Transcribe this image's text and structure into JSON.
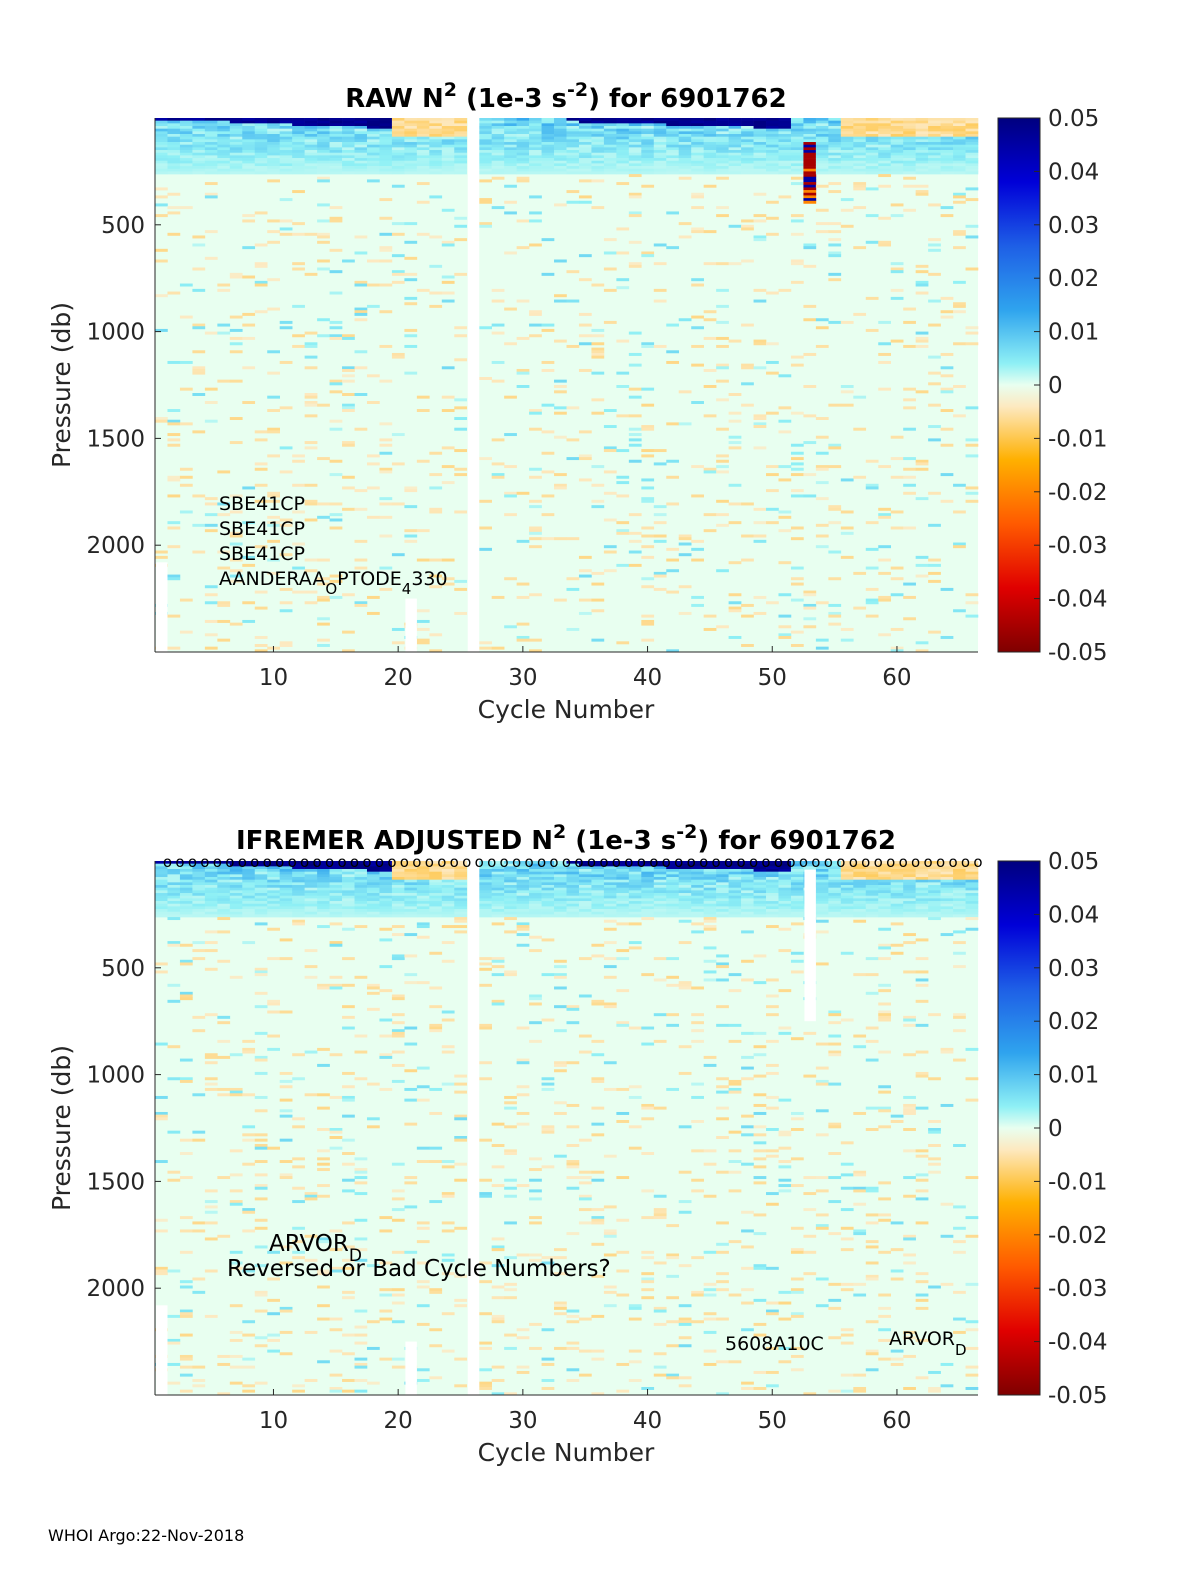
{
  "footer": "WHOI Argo:22-Nov-2018",
  "chart_data": [
    {
      "type": "heatmap",
      "id": "raw",
      "title_pre": "RAW N",
      "title_sup": "2",
      "title_mid": " (1e-3 s",
      "title_sup2": "-2",
      "title_post": ") for 6901762",
      "xlabel": "Cycle Number",
      "ylabel": "Pressure (db)",
      "xlim": [
        1,
        66
      ],
      "ylim": [
        0,
        2500
      ],
      "y_reversed": true,
      "xticks": [
        10,
        20,
        30,
        40,
        50,
        60
      ],
      "yticks": [
        500,
        1000,
        1500,
        2000
      ],
      "clim": [
        -0.05,
        0.05
      ],
      "colorbar_ticks": [
        "0.05",
        "0.04",
        "0.03",
        "0.02",
        "0.01",
        "0",
        "-0.01",
        "-0.02",
        "-0.03",
        "-0.04",
        "-0.05"
      ],
      "missing_cycles": [
        26
      ],
      "missing_segments": [
        {
          "cycle": 1,
          "from": 2080,
          "to": 2500
        },
        {
          "cycle": 21,
          "from": 2250,
          "to": 2500
        }
      ],
      "annotations": [
        "SBE41CP",
        "SBE41CP",
        "SBE41CP",
        "AANDERAA",
        "O",
        "PTODE",
        "4",
        "330"
      ],
      "surface_markers": false
    },
    {
      "type": "heatmap",
      "id": "adjusted",
      "title_pre": "IFREMER  ADJUSTED N",
      "title_sup": "2",
      "title_mid": " (1e-3 s",
      "title_sup2": "-2",
      "title_post": ") for 6901762",
      "xlabel": "Cycle Number",
      "ylabel": "Pressure (db)",
      "xlim": [
        1,
        66
      ],
      "ylim": [
        0,
        2500
      ],
      "y_reversed": true,
      "xticks": [
        10,
        20,
        30,
        40,
        50,
        60
      ],
      "yticks": [
        500,
        1000,
        1500,
        2000
      ],
      "clim": [
        -0.05,
        0.05
      ],
      "colorbar_ticks": [
        "0.05",
        "0.04",
        "0.03",
        "0.02",
        "0.01",
        "0",
        "-0.01",
        "-0.02",
        "-0.03",
        "-0.04",
        "-0.05"
      ],
      "missing_cycles": [
        26
      ],
      "missing_segments": [
        {
          "cycle": 1,
          "from": 2080,
          "to": 2500
        },
        {
          "cycle": 21,
          "from": 2250,
          "to": 2500
        },
        {
          "cycle": 53,
          "from": 40,
          "to": 750
        }
      ],
      "annotations": [
        "ARVOR",
        "D",
        "Reversed or Bad Cycle Numbers?",
        "5608A10C",
        "ARVOR",
        "D"
      ],
      "surface_markers": true,
      "marker_symbol": "o"
    }
  ]
}
